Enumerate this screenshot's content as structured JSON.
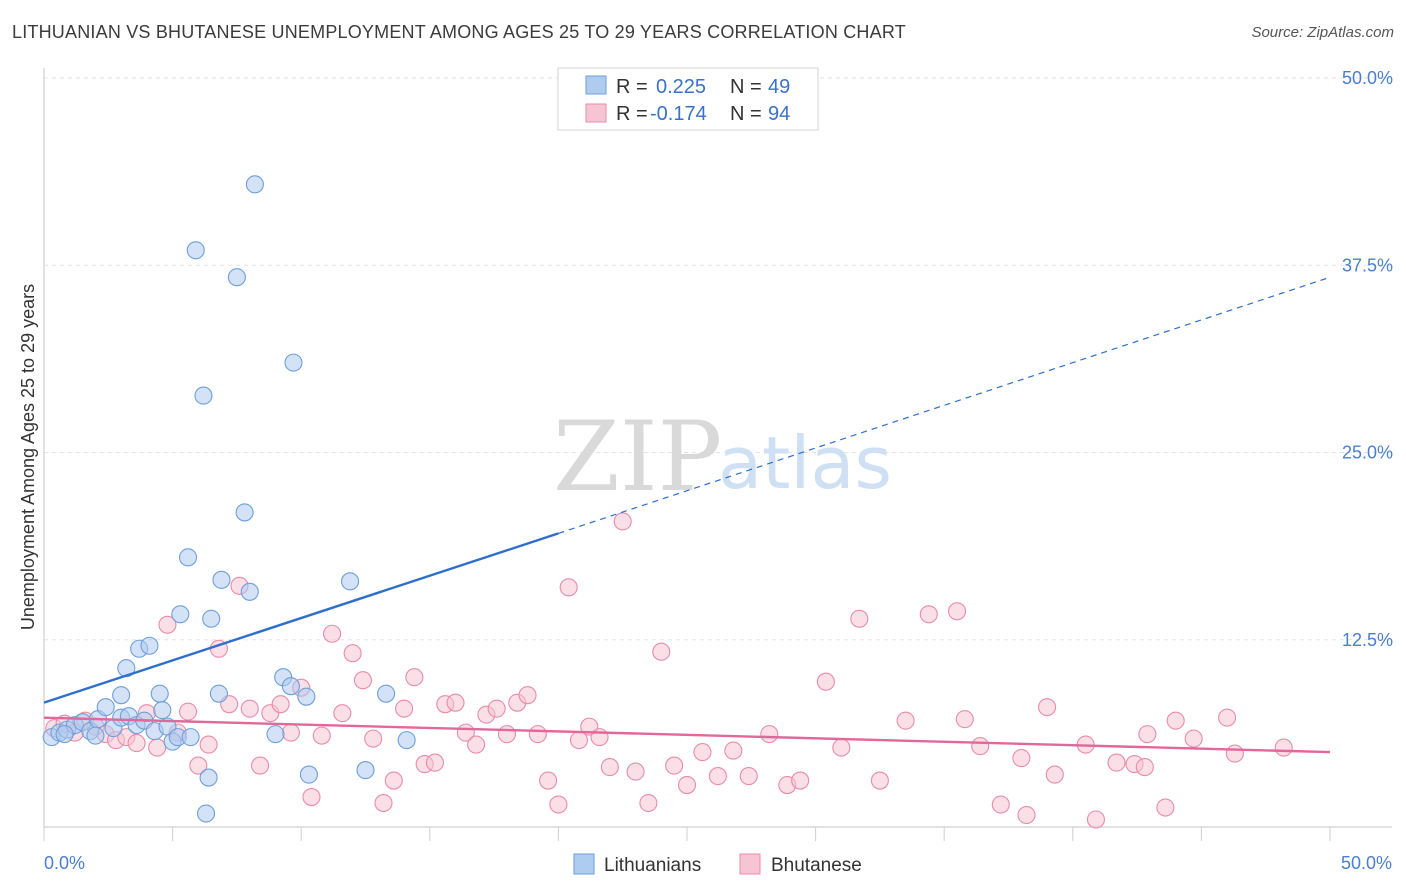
{
  "header": {
    "title": "LITHUANIAN VS BHUTANESE UNEMPLOYMENT AMONG AGES 25 TO 29 YEARS CORRELATION CHART",
    "source": "Source: ZipAtlas.com"
  },
  "watermark": {
    "zip": "ZIP",
    "atlas": "atlas"
  },
  "legend": {
    "rows": [
      {
        "r_label": "R =",
        "r_value": "0.225",
        "n_label": "N =",
        "n_value": "49"
      },
      {
        "r_label": "R =",
        "r_value": "-0.174",
        "n_label": "N =",
        "n_value": "94"
      }
    ]
  },
  "colors": {
    "lithuanians_fill": "#aecbf0",
    "lithuanians_stroke": "#6f9fd8",
    "lithuanians_line": "#2f6fcc",
    "bhutanese_fill": "#f6c4d3",
    "bhutanese_stroke": "#e98bab",
    "bhutanese_line": "#e0689a",
    "tick_text": "#4a7fd0",
    "grid": "#e3e3e3"
  },
  "chart_data": {
    "type": "scatter",
    "xlabel": "",
    "ylabel": "Unemployment Among Ages 25 to 29 years",
    "xlim": [
      0,
      50
    ],
    "ylim": [
      0,
      50
    ],
    "x_tick_labels": [
      {
        "value": 0,
        "label": "0.0%"
      },
      {
        "value": 50,
        "label": "50.0%"
      }
    ],
    "y_tick_labels": [
      {
        "value": 12.5,
        "label": "12.5%"
      },
      {
        "value": 25,
        "label": "25.0%"
      },
      {
        "value": 37.5,
        "label": "37.5%"
      },
      {
        "value": 50,
        "label": "50.0%"
      }
    ],
    "x_minor_ticks": [
      0,
      5,
      10,
      15,
      20,
      25,
      30,
      35,
      40,
      45,
      50
    ],
    "grid": true,
    "legend_position": "top-center",
    "series": [
      {
        "name": "Lithuanians",
        "trend": {
          "x0": 0,
          "y0": 8.3,
          "x1": 20.0,
          "y1": 19.6,
          "dashed_to_x": 50,
          "dashed_to_y": 36.7
        },
        "points": [
          [
            0.3,
            6.0
          ],
          [
            0.6,
            6.3
          ],
          [
            0.9,
            6.5
          ],
          [
            1.2,
            6.8
          ],
          [
            1.5,
            7.0
          ],
          [
            1.8,
            6.4
          ],
          [
            2.1,
            7.2
          ],
          [
            2.4,
            8.0
          ],
          [
            2.7,
            6.6
          ],
          [
            3.0,
            7.3
          ],
          [
            3.3,
            7.4
          ],
          [
            3.6,
            6.8
          ],
          [
            3.9,
            7.1
          ],
          [
            3.0,
            8.8
          ],
          [
            3.2,
            10.6
          ],
          [
            3.7,
            11.9
          ],
          [
            4.1,
            12.1
          ],
          [
            4.3,
            6.4
          ],
          [
            4.5,
            8.9
          ],
          [
            4.6,
            7.8
          ],
          [
            4.8,
            6.7
          ],
          [
            5.0,
            5.7
          ],
          [
            5.2,
            6.0
          ],
          [
            5.3,
            14.2
          ],
          [
            5.6,
            18.0
          ],
          [
            5.7,
            6.0
          ],
          [
            5.9,
            38.5
          ],
          [
            6.2,
            28.8
          ],
          [
            6.4,
            3.3
          ],
          [
            6.5,
            13.9
          ],
          [
            6.8,
            8.9
          ],
          [
            6.9,
            16.5
          ],
          [
            7.5,
            36.7
          ],
          [
            7.8,
            21.0
          ],
          [
            8.0,
            15.7
          ],
          [
            8.2,
            42.9
          ],
          [
            9.0,
            6.2
          ],
          [
            9.3,
            10.0
          ],
          [
            9.6,
            9.4
          ],
          [
            9.7,
            31.0
          ],
          [
            10.2,
            8.7
          ],
          [
            10.3,
            3.5
          ],
          [
            11.9,
            16.4
          ],
          [
            12.5,
            3.8
          ],
          [
            13.3,
            8.9
          ],
          [
            14.1,
            5.8
          ],
          [
            6.3,
            0.9
          ],
          [
            2.0,
            6.1
          ],
          [
            0.8,
            6.2
          ]
        ]
      },
      {
        "name": "Bhutanese",
        "trend": {
          "x0": 0,
          "y0": 7.3,
          "x1": 50,
          "y1": 5.0
        },
        "points": [
          [
            0.4,
            6.6
          ],
          [
            0.8,
            6.9
          ],
          [
            1.2,
            6.3
          ],
          [
            1.6,
            7.1
          ],
          [
            2.0,
            6.7
          ],
          [
            2.4,
            6.2
          ],
          [
            2.8,
            5.8
          ],
          [
            3.2,
            6.0
          ],
          [
            3.6,
            5.6
          ],
          [
            4.0,
            7.6
          ],
          [
            4.4,
            5.3
          ],
          [
            4.8,
            13.5
          ],
          [
            5.2,
            6.3
          ],
          [
            5.6,
            7.7
          ],
          [
            6.0,
            4.1
          ],
          [
            6.4,
            5.5
          ],
          [
            6.8,
            11.9
          ],
          [
            7.2,
            8.2
          ],
          [
            7.6,
            16.1
          ],
          [
            8.0,
            7.9
          ],
          [
            8.4,
            4.1
          ],
          [
            8.8,
            7.6
          ],
          [
            9.2,
            8.2
          ],
          [
            9.6,
            6.3
          ],
          [
            10.0,
            9.3
          ],
          [
            10.4,
            2.0
          ],
          [
            10.8,
            6.1
          ],
          [
            11.2,
            12.9
          ],
          [
            11.6,
            7.6
          ],
          [
            12.0,
            11.6
          ],
          [
            12.4,
            9.8
          ],
          [
            12.8,
            5.9
          ],
          [
            13.2,
            1.6
          ],
          [
            13.6,
            3.1
          ],
          [
            14.0,
            7.9
          ],
          [
            14.4,
            10.0
          ],
          [
            14.8,
            4.2
          ],
          [
            15.2,
            4.3
          ],
          [
            15.6,
            8.2
          ],
          [
            16.0,
            8.3
          ],
          [
            16.4,
            6.3
          ],
          [
            16.8,
            5.5
          ],
          [
            17.2,
            7.5
          ],
          [
            17.6,
            7.9
          ],
          [
            18.0,
            6.2
          ],
          [
            18.4,
            8.3
          ],
          [
            18.8,
            8.8
          ],
          [
            19.2,
            6.2
          ],
          [
            19.6,
            3.1
          ],
          [
            20.0,
            1.5
          ],
          [
            20.4,
            16.0
          ],
          [
            20.8,
            5.8
          ],
          [
            21.2,
            6.7
          ],
          [
            21.6,
            6.0
          ],
          [
            22.0,
            4.0
          ],
          [
            22.5,
            20.4
          ],
          [
            23.0,
            3.7
          ],
          [
            23.5,
            1.6
          ],
          [
            24.0,
            11.7
          ],
          [
            24.5,
            4.1
          ],
          [
            25.0,
            2.8
          ],
          [
            25.6,
            5.0
          ],
          [
            26.2,
            3.4
          ],
          [
            26.8,
            5.1
          ],
          [
            27.4,
            3.4
          ],
          [
            28.2,
            6.2
          ],
          [
            28.9,
            2.8
          ],
          [
            29.4,
            3.1
          ],
          [
            30.4,
            9.7
          ],
          [
            31.0,
            5.3
          ],
          [
            31.7,
            13.9
          ],
          [
            32.5,
            3.1
          ],
          [
            33.5,
            7.1
          ],
          [
            34.4,
            14.2
          ],
          [
            35.5,
            14.4
          ],
          [
            35.8,
            7.2
          ],
          [
            36.4,
            5.4
          ],
          [
            37.2,
            1.5
          ],
          [
            38.0,
            4.6
          ],
          [
            38.2,
            0.8
          ],
          [
            39.0,
            8.0
          ],
          [
            39.3,
            3.5
          ],
          [
            40.5,
            5.5
          ],
          [
            40.9,
            0.5
          ],
          [
            41.7,
            4.3
          ],
          [
            42.4,
            4.2
          ],
          [
            42.8,
            4.0
          ],
          [
            42.9,
            6.2
          ],
          [
            43.6,
            1.3
          ],
          [
            44.0,
            7.1
          ],
          [
            44.7,
            5.9
          ],
          [
            46.0,
            7.3
          ],
          [
            46.3,
            4.9
          ],
          [
            48.2,
            5.3
          ]
        ]
      }
    ]
  },
  "bottom_legend": {
    "items": [
      {
        "label": "Lithuanians"
      },
      {
        "label": "Bhutanese"
      }
    ]
  }
}
